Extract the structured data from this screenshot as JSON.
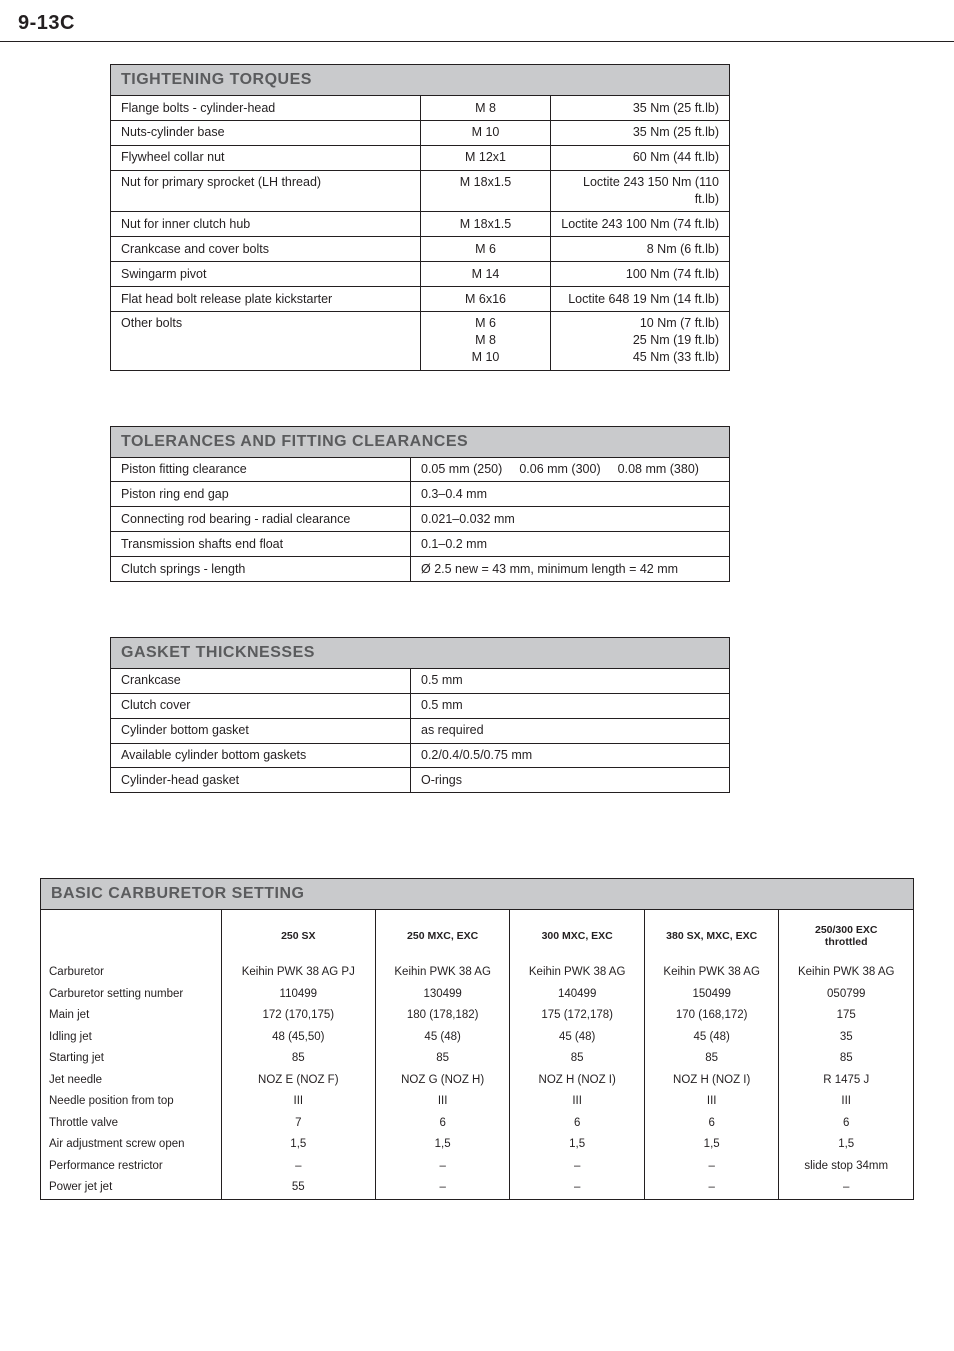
{
  "page_number": "9-13C",
  "tightening": {
    "title": "TIGHTENING TORQUES",
    "rows": [
      {
        "label": "Flange bolts - cylinder-head",
        "spec": "M 8",
        "val": "35 Nm  (25 ft.lb)"
      },
      {
        "label": "Nuts-cylinder base",
        "spec": "M 10",
        "val": "35 Nm  (25 ft.lb)"
      },
      {
        "label": "Flywheel collar nut",
        "spec": "M 12x1",
        "val": "60 Nm  (44 ft.lb)"
      },
      {
        "label": "Nut for primary sprocket (LH thread)",
        "spec": "M 18x1.5",
        "val": "Loctite 243 150 Nm (110 ft.lb)"
      },
      {
        "label": "Nut for inner clutch hub",
        "spec": "M 18x1.5",
        "val": "Loctite 243 100 Nm  (74 ft.lb)"
      },
      {
        "label": "Crankcase and cover bolts",
        "spec": "M 6",
        "val": "8 Nm    (6 ft.lb)"
      },
      {
        "label": "Swingarm pivot",
        "spec": "M 14",
        "val": "100 Nm  (74 ft.lb)"
      },
      {
        "label": "Flat head bolt release plate kickstarter",
        "spec": "M 6x16",
        "val": "Loctite 648 19 Nm  (14 ft.lb)"
      }
    ],
    "other": {
      "label": "Other bolts",
      "specs": "M 6\nM 8\nM 10",
      "vals": "10 Nm    (7 ft.lb)\n25 Nm  (19 ft.lb)\n45 Nm  (33 ft.lb)"
    }
  },
  "tolerances": {
    "title": "TOLERANCES AND FITTING CLEARANCES",
    "rows": [
      {
        "label": "Piston fitting clearance",
        "v1": "0.05 mm (250)",
        "v2": "0.06 mm (300)",
        "v3": "0.08 mm (380)"
      },
      {
        "label": "Piston ring end gap",
        "val": "0.3–0.4 mm"
      },
      {
        "label": "Connecting rod bearing - radial clearance",
        "val": "0.021–0.032 mm"
      },
      {
        "label": "Transmission shafts end float",
        "val": "0.1–0.2 mm"
      },
      {
        "label": "Clutch springs - length",
        "val": "Ø 2.5   new = 43 mm, minimum length = 42 mm"
      }
    ]
  },
  "gaskets": {
    "title": "GASKET THICKNESSES",
    "rows": [
      {
        "label": "Crankcase",
        "val": "0.5 mm"
      },
      {
        "label": "Clutch cover",
        "val": "0.5 mm"
      },
      {
        "label": "Cylinder bottom gasket",
        "val": "as required"
      },
      {
        "label": "Available cylinder bottom gaskets",
        "val": "0.2/0.4/0.5/0.75 mm"
      },
      {
        "label": "Cylinder-head gasket",
        "val": "O-rings"
      }
    ]
  },
  "carb": {
    "title": "BASIC CARBURETOR SETTING",
    "columns": [
      "250 SX",
      "250 MXC, EXC",
      "300 MXC, EXC",
      "380 SX, MXC, EXC",
      "250/300 EXC\nthrottled"
    ],
    "rows": [
      {
        "label": "Carburetor",
        "v": [
          "Keihin PWK 38 AG PJ",
          "Keihin PWK 38 AG",
          "Keihin PWK 38 AG",
          "Keihin PWK 38 AG",
          "Keihin PWK 38 AG"
        ]
      },
      {
        "label": "Carburetor setting number",
        "v": [
          "110499",
          "130499",
          "140499",
          "150499",
          "050799"
        ]
      },
      {
        "label": "Main jet",
        "v": [
          "172 (170,175)",
          "180 (178,182)",
          "175 (172,178)",
          "170 (168,172)",
          "175"
        ]
      },
      {
        "label": "Idling jet",
        "v": [
          "48 (45,50)",
          "45 (48)",
          "45 (48)",
          "45 (48)",
          "35"
        ]
      },
      {
        "label": "Starting jet",
        "v": [
          "85",
          "85",
          "85",
          "85",
          "85"
        ]
      },
      {
        "label": "Jet needle",
        "v": [
          "NOZ E (NOZ F)",
          "NOZ G (NOZ H)",
          "NOZ H (NOZ I)",
          "NOZ H (NOZ I)",
          "R 1475 J"
        ]
      },
      {
        "label": "Needle position from top",
        "v": [
          "III",
          "III",
          "III",
          "III",
          "III"
        ]
      },
      {
        "label": "Throttle valve",
        "v": [
          "7",
          "6",
          "6",
          "6",
          "6"
        ]
      },
      {
        "label": "Air adjustment screw open",
        "v": [
          "1,5",
          "1,5",
          "1,5",
          "1,5",
          "1,5"
        ]
      },
      {
        "label": "Performance restrictor",
        "v": [
          "–",
          "–",
          "–",
          "–",
          "slide stop 34mm"
        ]
      },
      {
        "label": "Power jet jet",
        "v": [
          "55",
          "–",
          "–",
          "–",
          "–"
        ]
      }
    ]
  }
}
